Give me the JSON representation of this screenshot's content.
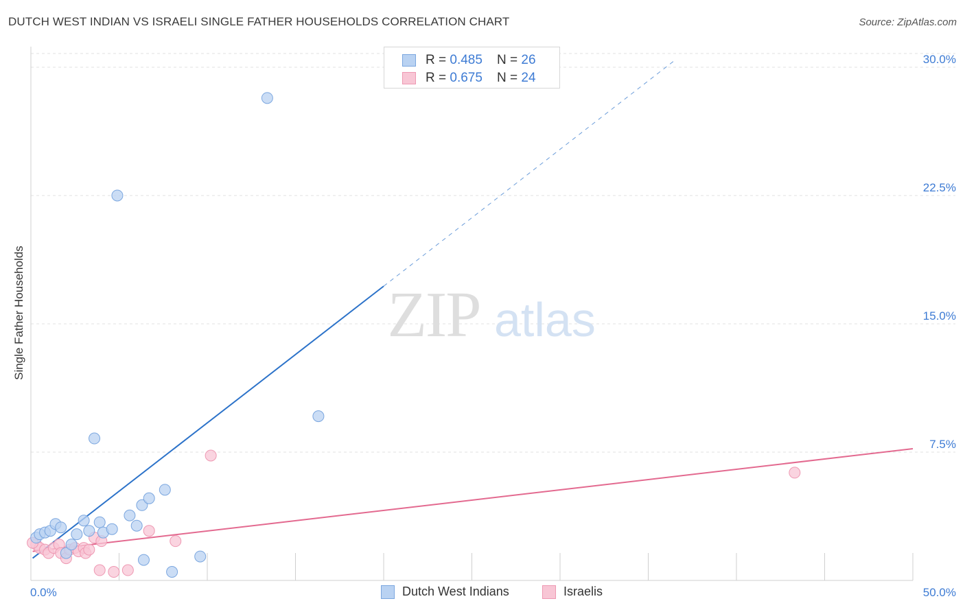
{
  "title": "DUTCH WEST INDIAN VS ISRAELI SINGLE FATHER HOUSEHOLDS CORRELATION CHART",
  "source": "Source: ZipAtlas.com",
  "watermark": {
    "zip": "ZIP",
    "atlas": "atlas"
  },
  "legend_top": [
    {
      "r_label": "R = ",
      "r_value": "0.485",
      "n_label": "N = ",
      "n_value": "26"
    },
    {
      "r_label": "R = ",
      "r_value": "0.675",
      "n_label": "N = ",
      "n_value": "24"
    }
  ],
  "legend_bottom": [
    "Dutch West Indians",
    "Israelis"
  ],
  "colors": {
    "blue_fill": "#b9d2f2",
    "blue_stroke": "#7aa6df",
    "blue_line": "#2b72c9",
    "pink_fill": "#f8c6d5",
    "pink_stroke": "#ee98b2",
    "pink_line": "#e3698f",
    "tick_label": "#3d7bd4",
    "grid": "#e2e2e2"
  },
  "chart_data": {
    "type": "scatter",
    "title": "DUTCH WEST INDIAN VS ISRAELI SINGLE FATHER HOUSEHOLDS CORRELATION CHART",
    "xlabel": "",
    "ylabel": "Single Father Households",
    "xlim": [
      0,
      50
    ],
    "ylim": [
      0,
      30.8
    ],
    "x_tick_labels": [
      "0.0%",
      "50.0%"
    ],
    "y_ticks": [
      7.5,
      15.0,
      22.5,
      30.0
    ],
    "y_tick_labels": [
      "7.5%",
      "15.0%",
      "22.5%",
      "30.0%"
    ],
    "series": [
      {
        "name": "Dutch West Indians",
        "R": 0.485,
        "N": 26,
        "points": [
          [
            0.3,
            2.5
          ],
          [
            0.5,
            2.7
          ],
          [
            0.8,
            2.8
          ],
          [
            1.1,
            2.9
          ],
          [
            1.4,
            3.3
          ],
          [
            1.7,
            3.1
          ],
          [
            2.0,
            1.6
          ],
          [
            2.3,
            2.1
          ],
          [
            2.6,
            2.7
          ],
          [
            3.0,
            3.5
          ],
          [
            3.3,
            2.9
          ],
          [
            3.6,
            8.3
          ],
          [
            3.9,
            3.4
          ],
          [
            4.1,
            2.8
          ],
          [
            4.6,
            3.0
          ],
          [
            4.9,
            22.5
          ],
          [
            5.6,
            3.8
          ],
          [
            6.0,
            3.2
          ],
          [
            6.3,
            4.4
          ],
          [
            6.4,
            1.2
          ],
          [
            6.7,
            4.8
          ],
          [
            7.6,
            5.3
          ],
          [
            8.0,
            0.5
          ],
          [
            9.6,
            1.4
          ],
          [
            13.4,
            28.2
          ],
          [
            16.3,
            9.6
          ]
        ],
        "trend": {
          "x0": 0.1,
          "y0": 1.3,
          "x1": 20.0,
          "y1": 17.2,
          "dash_to_x": 36.5,
          "dash_to_y": 30.4
        }
      },
      {
        "name": "Israelis",
        "R": 0.675,
        "N": 24,
        "points": [
          [
            0.3,
            2.1
          ],
          [
            0.5,
            1.9
          ],
          [
            0.8,
            1.8
          ],
          [
            1.0,
            1.6
          ],
          [
            1.3,
            1.9
          ],
          [
            1.6,
            2.1
          ],
          [
            1.7,
            1.6
          ],
          [
            2.0,
            1.3
          ],
          [
            2.2,
            1.8
          ],
          [
            2.5,
            1.9
          ],
          [
            2.7,
            1.7
          ],
          [
            3.0,
            1.9
          ],
          [
            3.1,
            1.6
          ],
          [
            3.3,
            1.8
          ],
          [
            3.6,
            2.5
          ],
          [
            3.9,
            0.6
          ],
          [
            4.0,
            2.3
          ],
          [
            4.7,
            0.5
          ],
          [
            5.5,
            0.6
          ],
          [
            6.7,
            2.9
          ],
          [
            8.2,
            2.3
          ],
          [
            10.2,
            7.3
          ],
          [
            43.3,
            6.3
          ],
          [
            0.1,
            2.2
          ]
        ],
        "trend": {
          "x0": 0.1,
          "y0": 1.7,
          "x1": 50.0,
          "y1": 7.7
        }
      }
    ]
  }
}
